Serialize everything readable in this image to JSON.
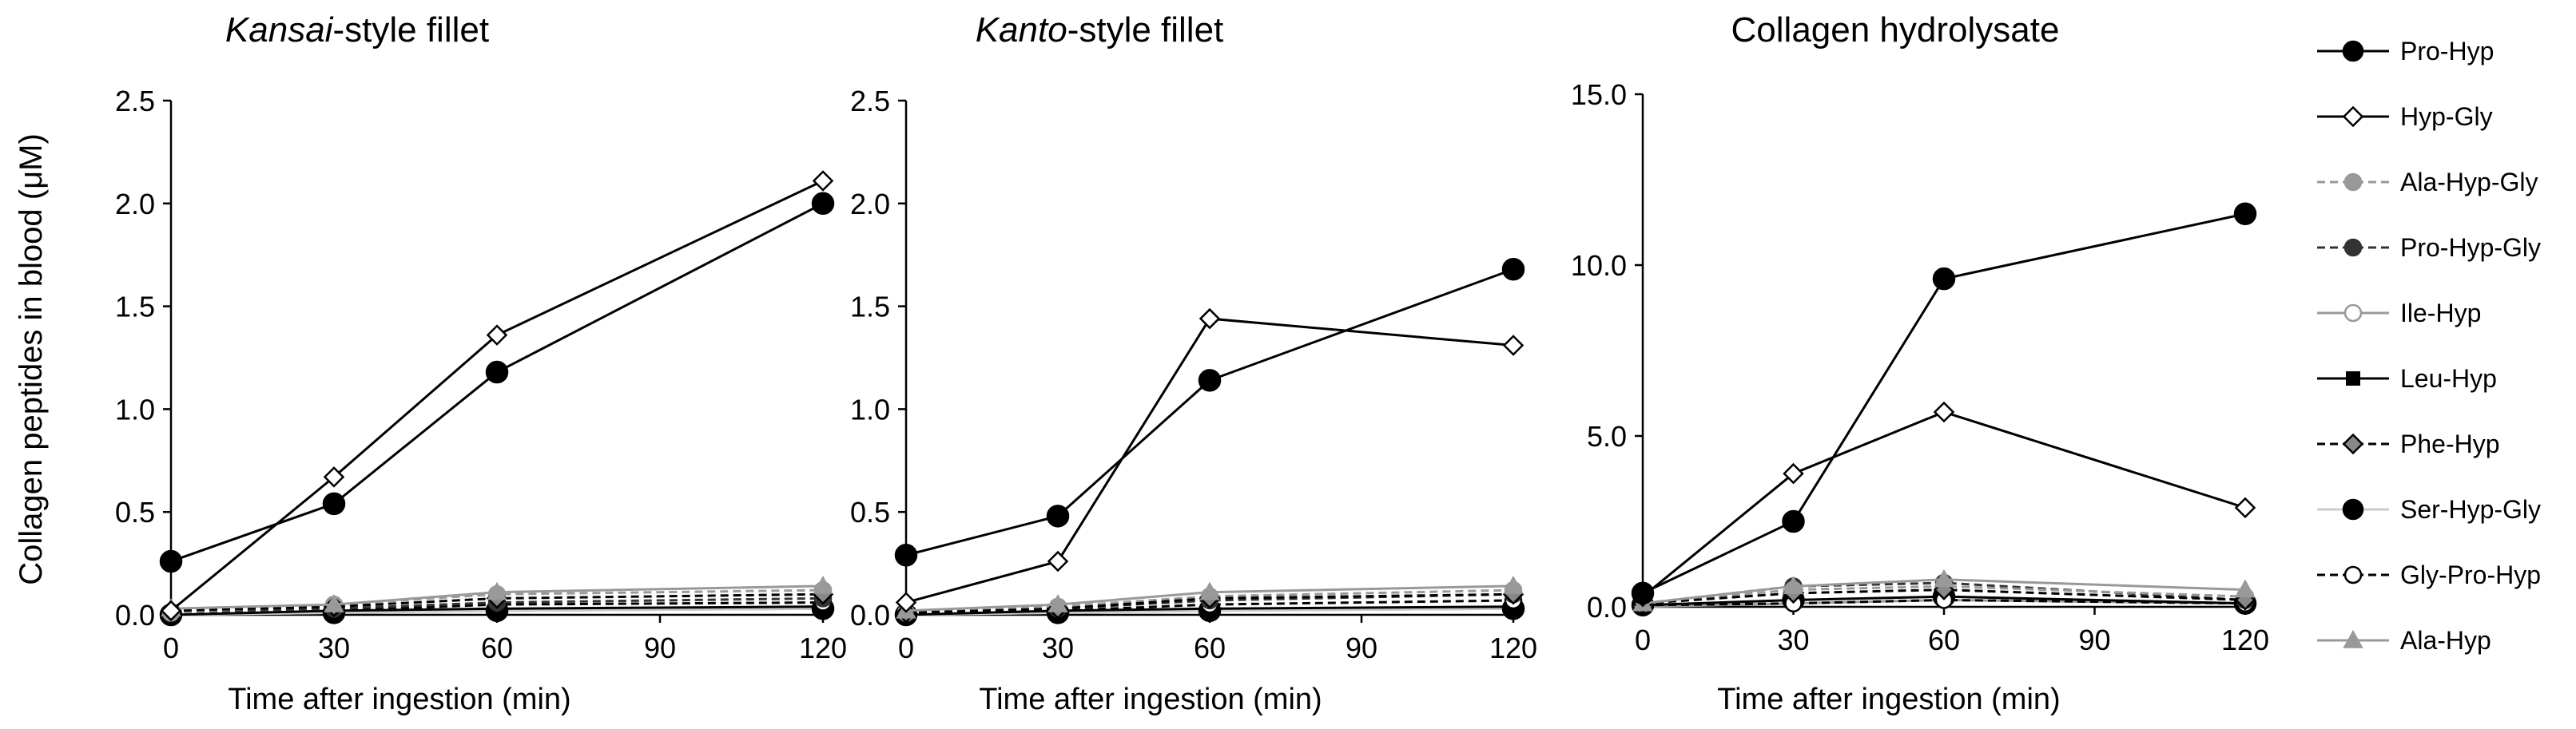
{
  "chart_data": [
    {
      "type": "line",
      "title_italic": "Kansai",
      "title_rest": "-style fillet",
      "xlabel": "Time after ingestion (min)",
      "ylabel": "Collagen peptides in blood (μM)",
      "x": [
        0,
        30,
        60,
        120
      ],
      "xticks": [
        0,
        30,
        60,
        90,
        120
      ],
      "xtick_labels": [
        "0",
        "30",
        "60",
        "90",
        "120"
      ],
      "xlim": [
        0,
        120
      ],
      "ylim": [
        0,
        2.5
      ],
      "yticks": [
        0,
        0.5,
        1.0,
        1.5,
        2.0,
        2.5
      ],
      "ytick_labels": [
        "0.0",
        "0.5",
        "1.0",
        "1.5",
        "2.0",
        "2.5"
      ],
      "series": [
        {
          "name": "Pro-Hyp",
          "values": [
            0.26,
            0.54,
            1.18,
            2.0
          ]
        },
        {
          "name": "Hyp-Gly",
          "values": [
            0.02,
            0.67,
            1.36,
            2.11
          ]
        },
        {
          "name": "Ala-Hyp-Gly",
          "values": [
            0.01,
            0.05,
            0.1,
            0.12
          ]
        },
        {
          "name": "Pro-Hyp-Gly",
          "values": [
            0.01,
            0.03,
            0.06,
            0.08
          ]
        },
        {
          "name": "Ile-Hyp",
          "values": [
            0.0,
            0.01,
            0.02,
            0.03
          ]
        },
        {
          "name": "Leu-Hyp",
          "values": [
            0.0,
            0.02,
            0.03,
            0.04
          ]
        },
        {
          "name": "Phe-Hyp",
          "values": [
            0.02,
            0.04,
            0.08,
            0.1
          ]
        },
        {
          "name": "Ser-Hyp-Gly",
          "values": [
            0.0,
            0.01,
            0.02,
            0.03
          ]
        },
        {
          "name": "Gly-Pro-Hyp",
          "values": [
            0.01,
            0.02,
            0.05,
            0.06
          ]
        },
        {
          "name": "Ala-Hyp",
          "values": [
            0.03,
            0.05,
            0.11,
            0.14
          ]
        }
      ]
    },
    {
      "type": "line",
      "title_italic": "Kanto",
      "title_rest": "-style fillet",
      "xlabel": "Time after ingestion (min)",
      "ylabel": "",
      "x": [
        0,
        30,
        60,
        120
      ],
      "xticks": [
        0,
        30,
        60,
        90,
        120
      ],
      "xtick_labels": [
        "0",
        "30",
        "60",
        "90",
        "120"
      ],
      "xlim": [
        0,
        120
      ],
      "ylim": [
        0,
        2.5
      ],
      "yticks": [
        0,
        0.5,
        1.0,
        1.5,
        2.0,
        2.5
      ],
      "ytick_labels": [
        "0.0",
        "0.5",
        "1.0",
        "1.5",
        "2.0",
        "2.5"
      ],
      "series": [
        {
          "name": "Pro-Hyp",
          "values": [
            0.29,
            0.48,
            1.14,
            1.68
          ]
        },
        {
          "name": "Hyp-Gly",
          "values": [
            0.06,
            0.26,
            1.44,
            1.31
          ]
        },
        {
          "name": "Ala-Hyp-Gly",
          "values": [
            0.01,
            0.04,
            0.09,
            0.12
          ]
        },
        {
          "name": "Pro-Hyp-Gly",
          "values": [
            0.01,
            0.03,
            0.07,
            0.1
          ]
        },
        {
          "name": "Ile-Hyp",
          "values": [
            0.0,
            0.01,
            0.02,
            0.03
          ]
        },
        {
          "name": "Leu-Hyp",
          "values": [
            0.0,
            0.02,
            0.03,
            0.04
          ]
        },
        {
          "name": "Phe-Hyp",
          "values": [
            0.01,
            0.03,
            0.08,
            0.1
          ]
        },
        {
          "name": "Ser-Hyp-Gly",
          "values": [
            0.0,
            0.01,
            0.02,
            0.03
          ]
        },
        {
          "name": "Gly-Pro-Hyp",
          "values": [
            0.01,
            0.02,
            0.05,
            0.07
          ]
        },
        {
          "name": "Ala-Hyp",
          "values": [
            0.02,
            0.05,
            0.11,
            0.14
          ]
        }
      ]
    },
    {
      "type": "line",
      "title_italic": "",
      "title_rest": "Collagen hydrolysate",
      "xlabel": "Time after ingestion (min)",
      "ylabel": "",
      "x": [
        0,
        30,
        60,
        120
      ],
      "xticks": [
        0,
        30,
        60,
        90,
        120
      ],
      "xtick_labels": [
        "0",
        "30",
        "60",
        "90",
        "120"
      ],
      "xlim": [
        0,
        120
      ],
      "ylim": [
        0,
        15
      ],
      "yticks": [
        0,
        5,
        10,
        15
      ],
      "ytick_labels": [
        "0.0",
        "5.0",
        "10.0",
        "15.0"
      ],
      "series": [
        {
          "name": "Pro-Hyp",
          "values": [
            0.4,
            2.5,
            9.6,
            11.5
          ]
        },
        {
          "name": "Hyp-Gly",
          "values": [
            0.3,
            3.9,
            5.7,
            2.9
          ]
        },
        {
          "name": "Ala-Hyp-Gly",
          "values": [
            0.1,
            0.5,
            0.6,
            0.3
          ]
        },
        {
          "name": "Pro-Hyp-Gly",
          "values": [
            0.1,
            0.6,
            0.7,
            0.2
          ]
        },
        {
          "name": "Ile-Hyp",
          "values": [
            0.0,
            0.1,
            0.2,
            0.1
          ]
        },
        {
          "name": "Leu-Hyp",
          "values": [
            0.05,
            0.2,
            0.3,
            0.1
          ]
        },
        {
          "name": "Phe-Hyp",
          "values": [
            0.1,
            0.4,
            0.5,
            0.2
          ]
        },
        {
          "name": "Ser-Hyp-Gly",
          "values": [
            0.05,
            0.2,
            0.3,
            0.1
          ]
        },
        {
          "name": "Gly-Pro-Hyp",
          "values": [
            0.05,
            0.1,
            0.2,
            0.1
          ]
        },
        {
          "name": "Ala-Hyp",
          "values": [
            0.1,
            0.6,
            0.8,
            0.5
          ]
        }
      ]
    }
  ],
  "legend": {
    "position": "right",
    "items": [
      {
        "name": "Pro-Hyp",
        "color": "#000000",
        "marker": "circle",
        "fill": "#000000",
        "dash": "solid"
      },
      {
        "name": "Hyp-Gly",
        "color": "#000000",
        "marker": "diamond",
        "fill": "#ffffff",
        "dash": "solid"
      },
      {
        "name": "Ala-Hyp-Gly",
        "color": "#999999",
        "marker": "circle",
        "fill": "#999999",
        "dash": "dashed"
      },
      {
        "name": "Pro-Hyp-Gly",
        "color": "#333333",
        "marker": "circle",
        "fill": "#333333",
        "dash": "dashed"
      },
      {
        "name": "Ile-Hyp",
        "color": "#999999",
        "marker": "circle",
        "fill": "#ffffff",
        "dash": "solid"
      },
      {
        "name": "Leu-Hyp",
        "color": "#000000",
        "marker": "square",
        "fill": "#000000",
        "dash": "solid"
      },
      {
        "name": "Phe-Hyp",
        "color": "#000000",
        "marker": "diamond",
        "fill": "#888888",
        "dash": "dashed"
      },
      {
        "name": "Ser-Hyp-Gly",
        "color": "#cccccc",
        "marker": "circle",
        "fill": "#000000",
        "dash": "solid"
      },
      {
        "name": "Gly-Pro-Hyp",
        "color": "#000000",
        "marker": "circle",
        "fill": "#ffffff",
        "dash": "dashed"
      },
      {
        "name": "Ala-Hyp",
        "color": "#999999",
        "marker": "triangle",
        "fill": "#999999",
        "dash": "solid"
      }
    ]
  }
}
